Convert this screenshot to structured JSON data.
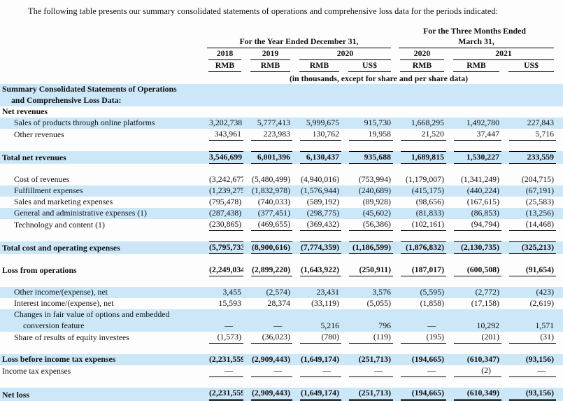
{
  "intro": "The following table presents our summary consolidated statements of operations and comprehensive loss data for the periods indicated:",
  "colors": {
    "row_highlight": "#cce7f8",
    "rule": "#000000"
  },
  "header": {
    "group_year": "For the Year Ended December 31,",
    "group_quarter_line1": "For the Three Months Ended",
    "group_quarter_line2": "March 31,",
    "years": [
      "2018",
      "2019",
      "2020",
      "2020",
      "2021"
    ],
    "currencies": [
      "RMB",
      "RMB",
      "RMB",
      "US$",
      "RMB",
      "RMB",
      "US$"
    ],
    "units_note": "(in thousands, except for share and per share data)"
  },
  "rows": [
    {
      "type": "data",
      "label": "Summary Consolidated Statements of Operations",
      "label2": "and Comprehensive Loss Data:",
      "indent": 0,
      "bold": true,
      "highlight": true,
      "values": null,
      "rule": "none"
    },
    {
      "type": "data",
      "label": "Net revenues",
      "indent": 0,
      "bold": true,
      "highlight": false,
      "values": null,
      "rule": "none"
    },
    {
      "type": "data",
      "label": "Sales of products through online platforms",
      "indent": 1,
      "bold": false,
      "highlight": true,
      "values": [
        "3,202,738",
        "5,777,413",
        "5,999,675",
        "915,730",
        "1,668,295",
        "1,492,780",
        "227,843"
      ],
      "rule": "none"
    },
    {
      "type": "data",
      "label": "Other revenues",
      "indent": 1,
      "bold": false,
      "highlight": false,
      "values": [
        "343,961",
        "223,983",
        "130,762",
        "19,958",
        "21,520",
        "37,447",
        "5,716"
      ],
      "rule": "b"
    },
    {
      "type": "spacer"
    },
    {
      "type": "data",
      "label": "Total net revenues",
      "indent": 0,
      "bold": true,
      "highlight": true,
      "values": [
        "3,546,699",
        "6,001,396",
        "6,130,437",
        "935,688",
        "1,689,815",
        "1,530,227",
        "233,559"
      ],
      "rule": "tb"
    },
    {
      "type": "spacer"
    },
    {
      "type": "data",
      "label": "Cost of revenues",
      "indent": 1,
      "bold": false,
      "highlight": false,
      "values": [
        "(3,242,677)",
        "(5,480,499)",
        "(4,940,016)",
        "(753,994)",
        "(1,179,007)",
        "(1,341,249)",
        "(204,715)"
      ],
      "rule": "none"
    },
    {
      "type": "data",
      "label": "Fulfillment expenses",
      "indent": 1,
      "bold": false,
      "highlight": true,
      "values": [
        "(1,239,275)",
        "(1,832,978)",
        "(1,576,944)",
        "(240,689)",
        "(415,175)",
        "(440,224)",
        "(67,191)"
      ],
      "rule": "none"
    },
    {
      "type": "data",
      "label": "Sales and marketing expenses",
      "indent": 1,
      "bold": false,
      "highlight": false,
      "values": [
        "(795,478)",
        "(740,033)",
        "(589,192)",
        "(89,928)",
        "(98,656)",
        "(167,615)",
        "(25,583)"
      ],
      "rule": "none"
    },
    {
      "type": "data",
      "label": "General and administrative expenses (1)",
      "indent": 1,
      "bold": false,
      "highlight": true,
      "values": [
        "(287,438)",
        "(377,451)",
        "(298,775)",
        "(45,602)",
        "(81,833)",
        "(86,853)",
        "(13,256)"
      ],
      "rule": "none"
    },
    {
      "type": "data",
      "label": "Technology and content (1)",
      "indent": 1,
      "bold": false,
      "highlight": false,
      "values": [
        "(230,865)",
        "(469,655)",
        "(369,432)",
        "(56,386)",
        "(102,161)",
        "(94,794)",
        "(14,468)"
      ],
      "rule": "b"
    },
    {
      "type": "spacer"
    },
    {
      "type": "data",
      "label": "Total cost and operating expenses",
      "indent": 0,
      "bold": true,
      "highlight": true,
      "values": [
        "(5,795,733)",
        "(8,900,616)",
        "(7,774,359)",
        "(1,186,599)",
        "(1,876,832)",
        "(2,130,735)",
        "(325,213)"
      ],
      "rule": "tb"
    },
    {
      "type": "spacer"
    },
    {
      "type": "data",
      "label": "Loss from operations",
      "indent": 0,
      "bold": true,
      "highlight": false,
      "values": [
        "(2,249,034)",
        "(2,899,220)",
        "(1,643,922)",
        "(250,911)",
        "(187,017)",
        "(600,508)",
        "(91,654)"
      ],
      "rule": "b"
    },
    {
      "type": "spacer"
    },
    {
      "type": "data",
      "label": "Other income/(expense), net",
      "indent": 1,
      "bold": false,
      "highlight": true,
      "values": [
        "3,455",
        "(2,574)",
        "23,431",
        "3,576",
        "(5,595)",
        "(2,772)",
        "(423)"
      ],
      "rule": "none"
    },
    {
      "type": "data",
      "label": "Interest income/(expense), net",
      "indent": 1,
      "bold": false,
      "highlight": false,
      "values": [
        "15,593",
        "28,374",
        "(33,119)",
        "(5,055)",
        "(1,858)",
        "(17,158)",
        "(2,619)"
      ],
      "rule": "none"
    },
    {
      "type": "data",
      "label": "Changes in fair value of options and embedded",
      "label2": "conversion feature",
      "indent": 1,
      "bold": false,
      "highlight": true,
      "values": [
        "—",
        "—",
        "5,216",
        "796",
        "—",
        "10,292",
        "1,571"
      ],
      "rule": "none"
    },
    {
      "type": "data",
      "label": "Share of results of equity investees",
      "indent": 1,
      "bold": false,
      "highlight": false,
      "values": [
        "(1,573)",
        "(36,023)",
        "(780)",
        "(119)",
        "(195)",
        "(201)",
        "(31)"
      ],
      "rule": "b"
    },
    {
      "type": "spacer"
    },
    {
      "type": "data",
      "label": "Loss before income tax expenses",
      "indent": 0,
      "bold": true,
      "highlight": true,
      "values": [
        "(2,231,559)",
        "(2,909,443)",
        "(1,649,174)",
        "(251,713)",
        "(194,665)",
        "(610,347)",
        "(93,156)"
      ],
      "rule": "none"
    },
    {
      "type": "data",
      "label": "Income tax expenses",
      "indent": 0,
      "bold": false,
      "highlight": false,
      "values": [
        "—",
        "—",
        "—",
        "—",
        "—",
        "(2)",
        "—"
      ],
      "rule": "b"
    },
    {
      "type": "spacer"
    },
    {
      "type": "data",
      "label": "Net loss",
      "indent": 0,
      "bold": true,
      "highlight": true,
      "values": [
        "(2,231,559)",
        "(2,909,443)",
        "(1,649,174)",
        "(251,713)",
        "(194,665)",
        "(610,349)",
        "(93,156)"
      ],
      "rule": "d"
    }
  ]
}
